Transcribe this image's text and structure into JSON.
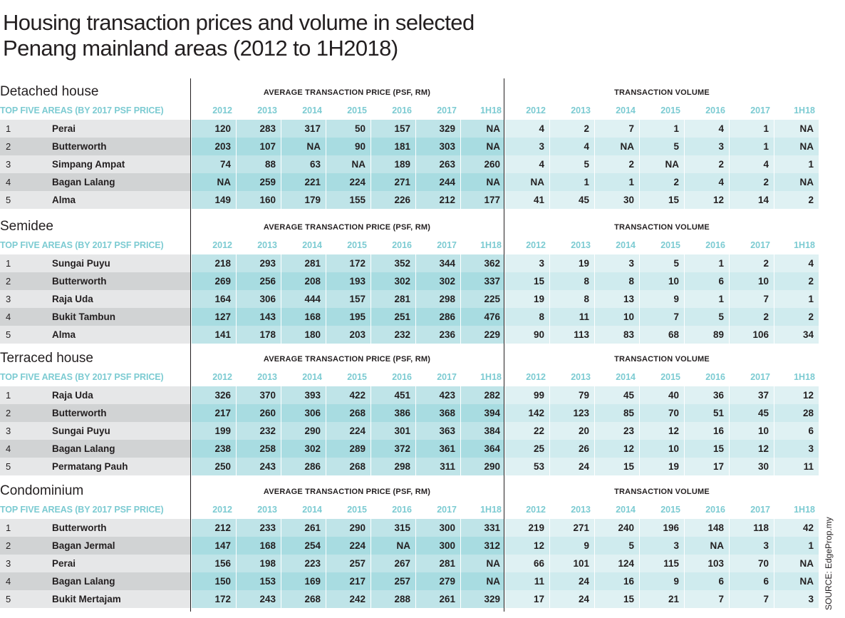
{
  "title_line1": "Housing transaction prices and volume in selected",
  "title_line2": "Penang mainland areas (2012 to 1H2018)",
  "source": "SOURCE: EdgeProp.my",
  "colors": {
    "header_text": "#7ccbd2",
    "price_bg": "#a8dce1",
    "volume_bg": "#cfebee",
    "label_bg": "#d1d3d4"
  },
  "chart_data": {
    "type": "table",
    "price_group_label": "AVERAGE TRANSACTION PRICE (PSF, RM)",
    "volume_group_label": "TRANSACTION VOLUME",
    "area_column_label": "TOP FIVE AREAS (BY 2017 PSF PRICE)",
    "years": [
      "2012",
      "2013",
      "2014",
      "2015",
      "2016",
      "2017",
      "1H18"
    ],
    "sections": [
      {
        "name": "Detached house",
        "rows": [
          {
            "rank": "1",
            "area": "Perai",
            "price": [
              "120",
              "283",
              "317",
              "50",
              "157",
              "329",
              "NA"
            ],
            "volume": [
              "4",
              "2",
              "7",
              "1",
              "4",
              "1",
              "NA"
            ]
          },
          {
            "rank": "2",
            "area": "Butterworth",
            "price": [
              "203",
              "107",
              "NA",
              "90",
              "181",
              "303",
              "NA"
            ],
            "volume": [
              "3",
              "4",
              "NA",
              "5",
              "3",
              "1",
              "NA"
            ]
          },
          {
            "rank": "3",
            "area": "Simpang Ampat",
            "price": [
              "74",
              "88",
              "63",
              "NA",
              "189",
              "263",
              "260"
            ],
            "volume": [
              "4",
              "5",
              "2",
              "NA",
              "2",
              "4",
              "1"
            ]
          },
          {
            "rank": "4",
            "area": "Bagan Lalang",
            "price": [
              "NA",
              "259",
              "221",
              "224",
              "271",
              "244",
              "NA"
            ],
            "volume": [
              "NA",
              "1",
              "1",
              "2",
              "4",
              "2",
              "NA"
            ]
          },
          {
            "rank": "5",
            "area": "Alma",
            "price": [
              "149",
              "160",
              "179",
              "155",
              "226",
              "212",
              "177"
            ],
            "volume": [
              "41",
              "45",
              "30",
              "15",
              "12",
              "14",
              "2"
            ]
          }
        ]
      },
      {
        "name": "Semidee",
        "rows": [
          {
            "rank": "1",
            "area": "Sungai Puyu",
            "price": [
              "218",
              "293",
              "281",
              "172",
              "352",
              "344",
              "362"
            ],
            "volume": [
              "3",
              "19",
              "3",
              "5",
              "1",
              "2",
              "4"
            ]
          },
          {
            "rank": "2",
            "area": "Butterworth",
            "price": [
              "269",
              "256",
              "208",
              "193",
              "302",
              "302",
              "337"
            ],
            "volume": [
              "15",
              "8",
              "8",
              "10",
              "6",
              "10",
              "2"
            ]
          },
          {
            "rank": "3",
            "area": "Raja Uda",
            "price": [
              "164",
              "306",
              "444",
              "157",
              "281",
              "298",
              "225"
            ],
            "volume": [
              "19",
              "8",
              "13",
              "9",
              "1",
              "7",
              "1"
            ]
          },
          {
            "rank": "4",
            "area": "Bukit Tambun",
            "price": [
              "127",
              "143",
              "168",
              "195",
              "251",
              "286",
              "476"
            ],
            "volume": [
              "8",
              "11",
              "10",
              "7",
              "5",
              "2",
              "2"
            ]
          },
          {
            "rank": "5",
            "area": "Alma",
            "price": [
              "141",
              "178",
              "180",
              "203",
              "232",
              "236",
              "229"
            ],
            "volume": [
              "90",
              "113",
              "83",
              "68",
              "89",
              "106",
              "34"
            ]
          }
        ]
      },
      {
        "name": "Terraced house",
        "rows": [
          {
            "rank": "1",
            "area": "Raja Uda",
            "price": [
              "326",
              "370",
              "393",
              "422",
              "451",
              "423",
              "282"
            ],
            "volume": [
              "99",
              "79",
              "45",
              "40",
              "36",
              "37",
              "12"
            ]
          },
          {
            "rank": "2",
            "area": "Butterworth",
            "price": [
              "217",
              "260",
              "306",
              "268",
              "386",
              "368",
              "394"
            ],
            "volume": [
              "142",
              "123",
              "85",
              "70",
              "51",
              "45",
              "28"
            ]
          },
          {
            "rank": "3",
            "area": "Sungai Puyu",
            "price": [
              "199",
              "232",
              "290",
              "224",
              "301",
              "363",
              "384"
            ],
            "volume": [
              "22",
              "20",
              "23",
              "12",
              "16",
              "10",
              "6"
            ]
          },
          {
            "rank": "4",
            "area": "Bagan Lalang",
            "price": [
              "238",
              "258",
              "302",
              "289",
              "372",
              "361",
              "364"
            ],
            "volume": [
              "25",
              "26",
              "12",
              "10",
              "15",
              "12",
              "3"
            ]
          },
          {
            "rank": "5",
            "area": "Permatang Pauh",
            "price": [
              "250",
              "243",
              "286",
              "268",
              "298",
              "311",
              "290"
            ],
            "volume": [
              "53",
              "24",
              "15",
              "19",
              "17",
              "30",
              "11"
            ]
          }
        ]
      },
      {
        "name": "Condominium",
        "rows": [
          {
            "rank": "1",
            "area": "Butterworth",
            "price": [
              "212",
              "233",
              "261",
              "290",
              "315",
              "300",
              "331"
            ],
            "volume": [
              "219",
              "271",
              "240",
              "196",
              "148",
              "118",
              "42"
            ]
          },
          {
            "rank": "2",
            "area": "Bagan Jermal",
            "price": [
              "147",
              "168",
              "254",
              "224",
              "NA",
              "300",
              "312"
            ],
            "volume": [
              "12",
              "9",
              "5",
              "3",
              "NA",
              "3",
              "1"
            ]
          },
          {
            "rank": "3",
            "area": "Perai",
            "price": [
              "156",
              "198",
              "223",
              "257",
              "267",
              "281",
              "NA"
            ],
            "volume": [
              "66",
              "101",
              "124",
              "115",
              "103",
              "70",
              "NA"
            ]
          },
          {
            "rank": "4",
            "area": "Bagan Lalang",
            "price": [
              "150",
              "153",
              "169",
              "217",
              "257",
              "279",
              "NA"
            ],
            "volume": [
              "11",
              "24",
              "16",
              "9",
              "6",
              "6",
              "NA"
            ]
          },
          {
            "rank": "5",
            "area": "Bukit Mertajam",
            "price": [
              "172",
              "243",
              "268",
              "242",
              "288",
              "261",
              "329"
            ],
            "volume": [
              "17",
              "24",
              "15",
              "21",
              "7",
              "7",
              "3"
            ]
          }
        ]
      }
    ]
  }
}
